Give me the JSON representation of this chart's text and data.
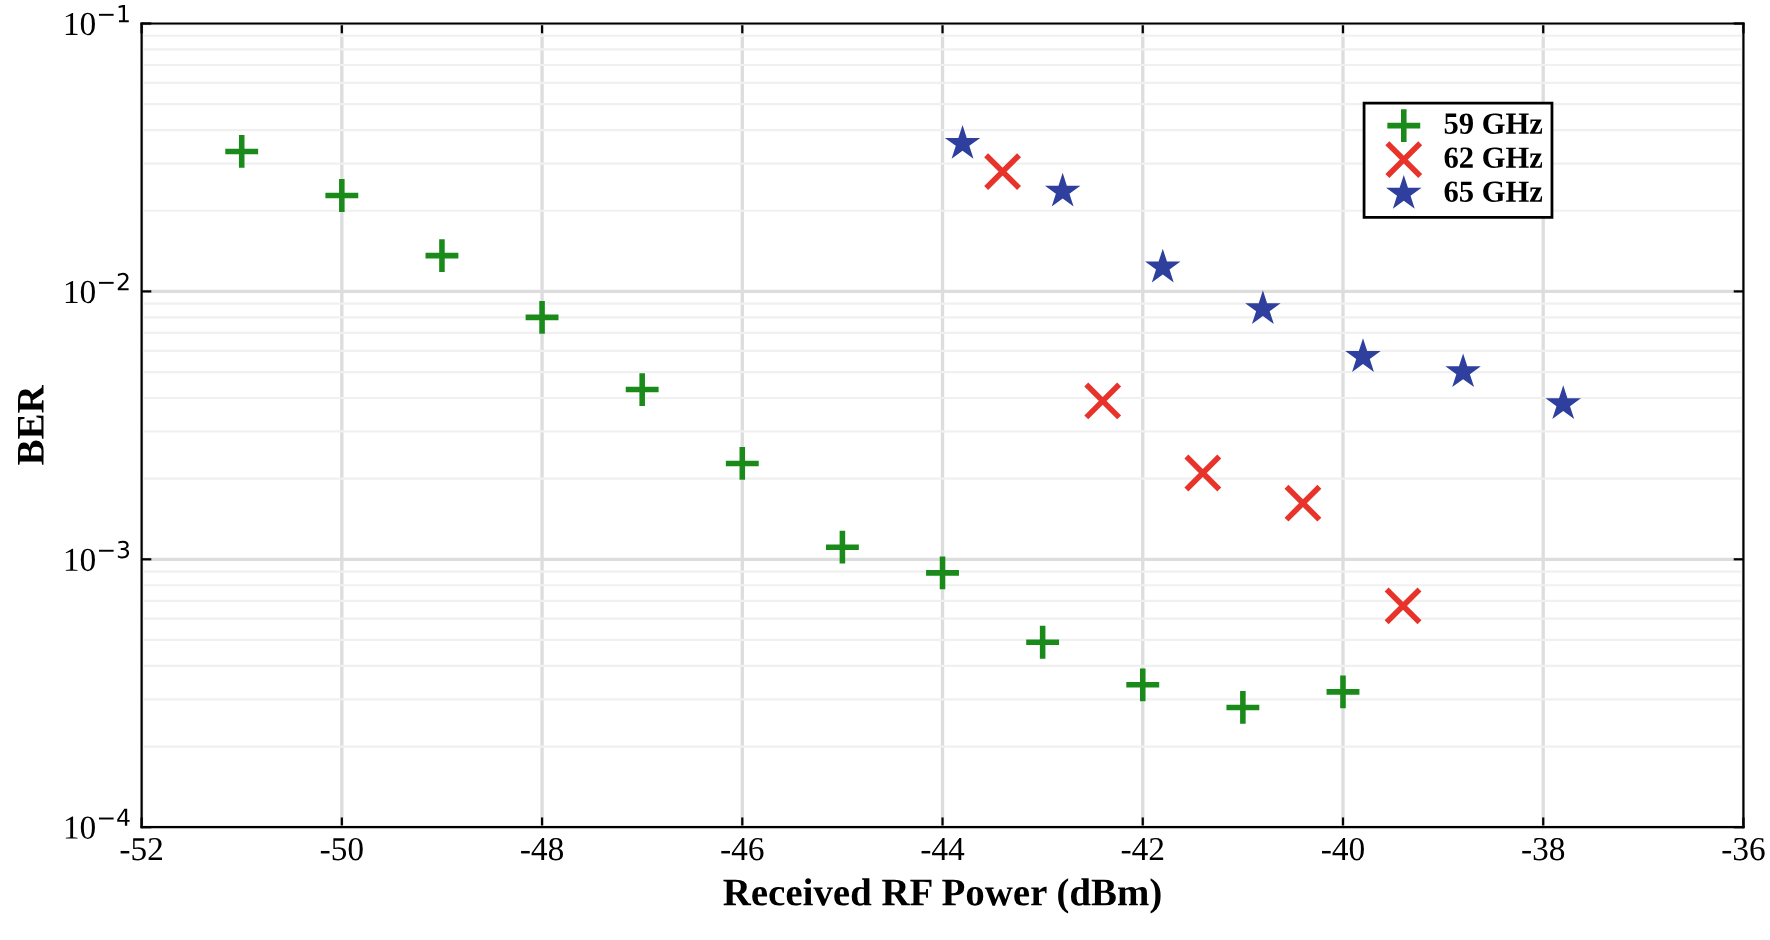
{
  "chart_data": {
    "type": "scatter",
    "xlabel": "Received RF Power (dBm)",
    "ylabel": "BER",
    "log": "y",
    "xlim": [
      -52,
      -36
    ],
    "xticks": [
      -52,
      -50,
      -48,
      -46,
      -44,
      -42,
      -40,
      -38,
      -36
    ],
    "ylim": [
      0.0001,
      0.1
    ],
    "yticks": [
      {
        "value": 0.0001,
        "label": "10$^{−4}$"
      },
      {
        "value": 0.001,
        "label": "10$^{−3}$"
      },
      {
        "value": 0.01,
        "label": "10$^{−2}$"
      },
      {
        "value": 0.1,
        "label": "10$^{−1}$"
      }
    ],
    "grid": true,
    "legend": "top right",
    "series": [
      {
        "name": "59 GHz",
        "color": "#1a8a1a",
        "marker": "plus",
        "x": [
          -51,
          -50,
          -49,
          -48,
          -47,
          -46,
          -45,
          -44,
          -43,
          -42,
          -41,
          -40
        ],
        "values": [
          0.0333,
          0.0228,
          0.0136,
          0.008,
          0.0043,
          0.00228,
          0.00111,
          0.00089,
          0.00049,
          0.00034,
          0.00028,
          0.00032
        ]
      },
      {
        "name": "62 GHz",
        "color": "#e8332a",
        "marker": "cross",
        "x": [
          -43.4,
          -42.4,
          -41.4,
          -40.4,
          -39.4
        ],
        "values": [
          0.028,
          0.0039,
          0.0021,
          0.00162,
          0.00067
        ]
      },
      {
        "name": "65 GHz",
        "color": "#2e3f9e",
        "marker": "star",
        "x": [
          -43.8,
          -42.8,
          -41.8,
          -40.8,
          -39.8,
          -38.8,
          -37.8
        ],
        "values": [
          0.0356,
          0.0236,
          0.0123,
          0.0086,
          0.0057,
          0.005,
          0.0038
        ]
      }
    ]
  }
}
